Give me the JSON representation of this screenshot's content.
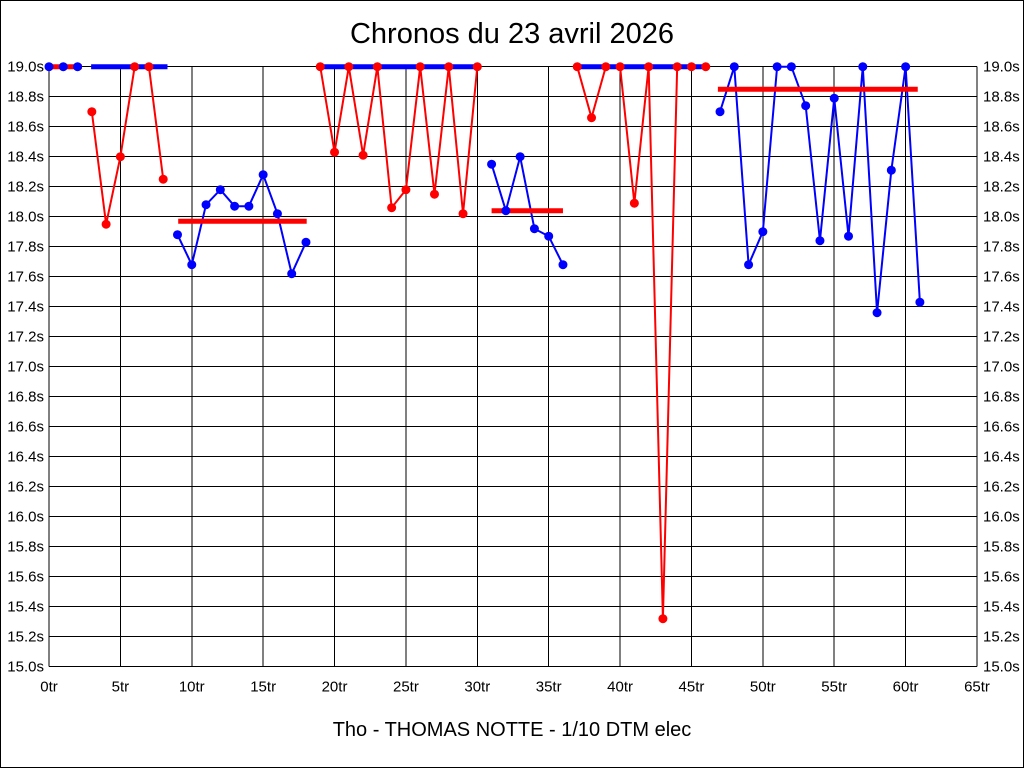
{
  "title": "Chronos du 23 avril 2026",
  "caption": "Tho - THOMAS NOTTE - 1/10 DTM elec",
  "chart_data": {
    "type": "line",
    "title": "Chronos du 23 avril 2026",
    "subtitle": "Tho - THOMAS NOTTE - 1/10 DTM elec",
    "grid": true,
    "legend": "none",
    "xlim": [
      0,
      65
    ],
    "ylim": [
      15.0,
      19.0
    ],
    "x_unit": "tr",
    "y_unit": "s",
    "x_ticks": [
      "0tr",
      "5tr",
      "10tr",
      "15tr",
      "20tr",
      "25tr",
      "30tr",
      "35tr",
      "40tr",
      "45tr",
      "50tr",
      "55tr",
      "60tr",
      "65tr"
    ],
    "y_ticks": [
      "19.0s",
      "18.8s",
      "18.6s",
      "18.4s",
      "18.2s",
      "18.0s",
      "17.8s",
      "17.6s",
      "17.4s",
      "17.2s",
      "17.0s",
      "16.8s",
      "16.6s",
      "16.4s",
      "16.2s",
      "16.0s",
      "15.8s",
      "15.6s",
      "15.4s",
      "15.2s",
      "15.0s"
    ],
    "colors": {
      "red": "#ff0000",
      "blue": "#0000ff"
    },
    "series": [
      {
        "name": "blue-stint-1",
        "color": "blue",
        "points": [
          [
            0,
            19.0
          ],
          [
            1,
            19.0
          ],
          [
            2,
            19.0
          ]
        ]
      },
      {
        "name": "red-stint-1",
        "color": "red",
        "points": [
          [
            3,
            18.7
          ],
          [
            4,
            17.95
          ],
          [
            5,
            18.4
          ],
          [
            6,
            19.0
          ],
          [
            7,
            19.0
          ],
          [
            8,
            18.25
          ]
        ]
      },
      {
        "name": "blue-stint-2",
        "color": "blue",
        "points": [
          [
            9,
            17.88
          ],
          [
            10,
            17.68
          ],
          [
            11,
            18.08
          ],
          [
            12,
            18.18
          ],
          [
            13,
            18.07
          ],
          [
            14,
            18.07
          ],
          [
            15,
            18.28
          ],
          [
            16,
            18.02
          ],
          [
            17,
            17.62
          ],
          [
            18,
            17.83
          ]
        ]
      },
      {
        "name": "red-stint-2",
        "color": "red",
        "points": [
          [
            19,
            19.0
          ],
          [
            20,
            18.43
          ],
          [
            21,
            19.0
          ],
          [
            22,
            18.41
          ],
          [
            23,
            19.0
          ],
          [
            24,
            18.06
          ],
          [
            25,
            18.18
          ],
          [
            26,
            19.0
          ],
          [
            27,
            18.15
          ],
          [
            28,
            19.0
          ],
          [
            29,
            18.02
          ],
          [
            30,
            19.0
          ]
        ]
      },
      {
        "name": "blue-stint-3",
        "color": "blue",
        "points": [
          [
            31,
            18.35
          ],
          [
            32,
            18.04
          ],
          [
            33,
            18.4
          ],
          [
            34,
            17.92
          ],
          [
            35,
            17.87
          ],
          [
            36,
            17.68
          ]
        ]
      },
      {
        "name": "red-stint-3",
        "color": "red",
        "points": [
          [
            37,
            19.0
          ],
          [
            38,
            18.66
          ],
          [
            39,
            19.0
          ],
          [
            40,
            19.0
          ],
          [
            41,
            18.09
          ],
          [
            42,
            19.0
          ],
          [
            43,
            15.32
          ],
          [
            44,
            19.0
          ],
          [
            45,
            19.0
          ],
          [
            46,
            19.0
          ]
        ]
      },
      {
        "name": "blue-stint-4",
        "color": "blue",
        "points": [
          [
            47,
            18.7
          ],
          [
            48,
            19.0
          ],
          [
            49,
            17.68
          ],
          [
            50,
            17.9
          ],
          [
            51,
            19.0
          ],
          [
            52,
            19.0
          ],
          [
            53,
            18.74
          ],
          [
            54,
            17.84
          ],
          [
            55,
            18.79
          ],
          [
            56,
            17.87
          ],
          [
            57,
            19.0
          ],
          [
            58,
            17.36
          ],
          [
            59,
            18.31
          ],
          [
            60,
            19.0
          ],
          [
            61,
            17.43
          ]
        ]
      }
    ],
    "flat_lines": [
      {
        "color": "red",
        "value": 19.0,
        "from": 0.0,
        "to": 2.3
      },
      {
        "color": "blue",
        "value": 19.0,
        "from": 2.95,
        "to": 8.3
      },
      {
        "color": "red",
        "value": 17.97,
        "from": 9.05,
        "to": 18.05
      },
      {
        "color": "blue",
        "value": 19.0,
        "from": 18.8,
        "to": 30.25
      },
      {
        "color": "red",
        "value": 18.04,
        "from": 31.0,
        "to": 36.0
      },
      {
        "color": "blue",
        "value": 19.0,
        "from": 36.8,
        "to": 46.15
      },
      {
        "color": "red",
        "value": 18.85,
        "from": 46.85,
        "to": 60.85
      }
    ]
  }
}
